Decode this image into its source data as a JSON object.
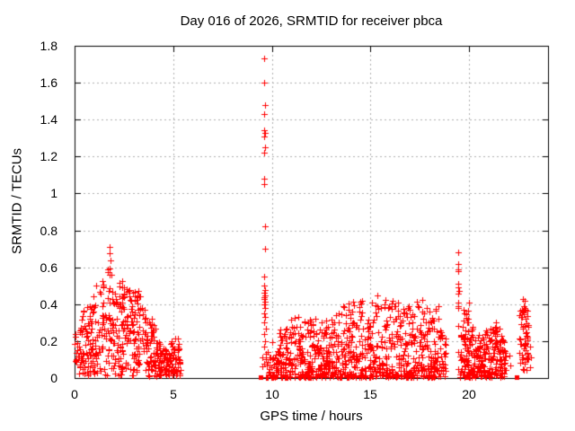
{
  "chart_data": {
    "type": "scatter",
    "title": "Day 016 of 2026, SRMTID for receiver pbca",
    "xlabel": "GPS time / hours",
    "ylabel": "SRMTID / TECUs",
    "xlim": [
      0,
      24
    ],
    "ylim": [
      0,
      1.8
    ],
    "xticks": [
      0,
      5,
      10,
      15,
      20
    ],
    "xtick_labels": [
      "0",
      "5",
      "10",
      "15",
      "20"
    ],
    "yticks": [
      0,
      0.2,
      0.4,
      0.6,
      0.8,
      1,
      1.2,
      1.4,
      1.6,
      1.8
    ],
    "ytick_labels": [
      "0",
      "0.2",
      "0.4",
      "0.6",
      "0.8",
      "1",
      "1.2",
      "1.4",
      "1.6",
      "1.8"
    ],
    "grid": {
      "style": "dotted",
      "color": "#b0b0b0",
      "at": "major-ticks"
    },
    "legend": "none",
    "axis_color": "#000000",
    "background": "#ffffff",
    "marker": {
      "shape": "plus",
      "color": "#ff0000",
      "size": 7
    },
    "zero_marker": {
      "shape": "filled-square",
      "color": "#ff0000",
      "size": 5
    },
    "series_name": "SRMTID",
    "seed": 20260116,
    "points_explicit": {
      "spike_0940": [
        [
          9.63,
          1.73
        ],
        [
          9.62,
          1.6
        ],
        [
          9.64,
          1.48
        ],
        [
          9.63,
          1.43
        ],
        [
          9.61,
          1.345
        ],
        [
          9.64,
          1.33
        ],
        [
          9.62,
          1.31
        ],
        [
          9.65,
          1.25
        ],
        [
          9.62,
          1.22
        ],
        [
          9.63,
          1.08
        ],
        [
          9.61,
          1.05
        ],
        [
          9.64,
          0.82
        ],
        [
          9.66,
          0.7
        ],
        [
          9.62,
          0.55
        ],
        [
          9.6,
          0.5
        ],
        [
          9.65,
          0.475
        ],
        [
          9.61,
          0.46
        ],
        [
          9.67,
          0.45
        ],
        [
          9.63,
          0.44
        ],
        [
          9.59,
          0.43
        ],
        [
          9.66,
          0.415
        ],
        [
          9.62,
          0.4
        ],
        [
          9.64,
          0.38
        ],
        [
          9.6,
          0.35
        ],
        [
          9.65,
          0.33
        ],
        [
          9.61,
          0.3
        ],
        [
          9.68,
          0.27
        ],
        [
          9.63,
          0.24
        ],
        [
          9.66,
          0.2
        ],
        [
          9.61,
          0.17
        ],
        [
          9.69,
          0.13
        ],
        [
          9.72,
          0.1
        ],
        [
          9.76,
          0.07
        ],
        [
          9.8,
          0.14
        ],
        [
          9.86,
          0.05
        ],
        [
          9.92,
          0.11
        ],
        [
          9.97,
          0.06
        ]
      ],
      "spike_1927": [
        [
          19.44,
          0.68
        ],
        [
          19.46,
          0.62
        ],
        [
          19.45,
          0.59
        ],
        [
          19.43,
          0.58
        ],
        [
          19.46,
          0.51
        ],
        [
          19.44,
          0.49
        ],
        [
          19.47,
          0.47
        ],
        [
          19.45,
          0.455
        ],
        [
          19.43,
          0.41
        ],
        [
          19.46,
          0.39
        ],
        [
          19.44,
          0.38
        ],
        [
          19.45,
          0.28
        ],
        [
          19.46,
          0.14
        ],
        [
          19.43,
          0.05
        ]
      ],
      "morning_peaks": [
        [
          1.77,
          0.71
        ],
        [
          1.76,
          0.675
        ],
        [
          1.8,
          0.635
        ]
      ],
      "isolated": [
        [
          22.03,
          0.12
        ],
        [
          22.08,
          0.07
        ],
        [
          23.07,
          0.17
        ],
        [
          23.1,
          0.06
        ],
        [
          23.12,
          0.11
        ]
      ],
      "zeros": [
        9.42,
        10.15,
        19.9,
        22.42
      ]
    },
    "clusters": [
      {
        "name": "morning",
        "x0": 0.0,
        "x1": 5.38,
        "n": 520,
        "power": 1.15,
        "ymin": 0.01,
        "env": [
          [
            0,
            0.28
          ],
          [
            0.4,
            0.35
          ],
          [
            0.8,
            0.44
          ],
          [
            1.2,
            0.52
          ],
          [
            1.6,
            0.58
          ],
          [
            1.8,
            0.62
          ],
          [
            2.0,
            0.56
          ],
          [
            2.3,
            0.52
          ],
          [
            2.6,
            0.54
          ],
          [
            3.0,
            0.47
          ],
          [
            3.35,
            0.48
          ],
          [
            3.7,
            0.36
          ],
          [
            4.1,
            0.31
          ],
          [
            4.35,
            0.18
          ],
          [
            4.7,
            0.14
          ],
          [
            5.0,
            0.22
          ],
          [
            5.25,
            0.22
          ],
          [
            5.38,
            0.06
          ]
        ]
      },
      {
        "name": "pre-band",
        "x0": 9.5,
        "x1": 10.05,
        "n": 15,
        "power": 2.2,
        "ymin": 0.003,
        "env": [
          [
            9.5,
            0.16
          ],
          [
            10.05,
            0.16
          ]
        ]
      },
      {
        "name": "midday-band",
        "x0": 10.02,
        "x1": 18.85,
        "n": 900,
        "power": 1.8,
        "ymin": 0.005,
        "env": [
          [
            10.02,
            0.22
          ],
          [
            10.6,
            0.3
          ],
          [
            11.3,
            0.34
          ],
          [
            12.0,
            0.33
          ],
          [
            12.7,
            0.31
          ],
          [
            13.3,
            0.37
          ],
          [
            13.9,
            0.41
          ],
          [
            14.6,
            0.43
          ],
          [
            15.0,
            0.4
          ],
          [
            15.4,
            0.47
          ],
          [
            15.9,
            0.42
          ],
          [
            16.4,
            0.42
          ],
          [
            17.0,
            0.39
          ],
          [
            17.4,
            0.42
          ],
          [
            17.75,
            0.44
          ],
          [
            18.1,
            0.36
          ],
          [
            18.5,
            0.41
          ],
          [
            18.85,
            0.22
          ]
        ]
      },
      {
        "name": "evening-1",
        "x0": 19.55,
        "x1": 20.55,
        "n": 130,
        "power": 1.6,
        "ymin": 0.005,
        "env": [
          [
            19.55,
            0.26
          ],
          [
            19.8,
            0.47
          ],
          [
            20.0,
            0.43
          ],
          [
            20.2,
            0.33
          ],
          [
            20.55,
            0.22
          ]
        ]
      },
      {
        "name": "evening-2",
        "x0": 20.55,
        "x1": 21.85,
        "n": 150,
        "power": 1.6,
        "ymin": 0.005,
        "env": [
          [
            20.55,
            0.22
          ],
          [
            20.9,
            0.29
          ],
          [
            21.3,
            0.32
          ],
          [
            21.6,
            0.26
          ],
          [
            21.85,
            0.15
          ]
        ]
      },
      {
        "name": "late",
        "x0": 22.55,
        "x1": 23.02,
        "n": 60,
        "power": 0.85,
        "ymin": 0.04,
        "env": [
          [
            22.55,
            0.36
          ],
          [
            22.7,
            0.44
          ],
          [
            22.9,
            0.42
          ],
          [
            23.02,
            0.28
          ]
        ]
      }
    ]
  }
}
